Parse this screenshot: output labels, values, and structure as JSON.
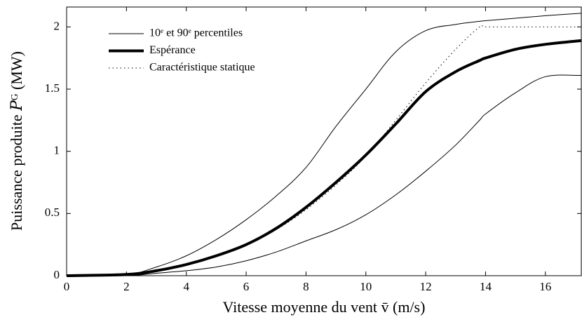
{
  "chart_data": {
    "type": "line",
    "x_label": "Vitesse moyenne du vent v̄ (m/s)",
    "y_label": "Puissance produite 𝑃ᴳ (MW)",
    "x": [
      0,
      2,
      3,
      4,
      5,
      6,
      7,
      8,
      9,
      10,
      11,
      12,
      13,
      13.8,
      14,
      15,
      16,
      17.2
    ],
    "series": [
      {
        "name": "10ᵉ et 90ᵉ percentiles",
        "color": "#000000",
        "line_width": 1,
        "line_style": "solid",
        "values": [
          0,
          0,
          0.02,
          0.04,
          0.07,
          0.12,
          0.19,
          0.28,
          0.37,
          0.49,
          0.65,
          0.84,
          1.05,
          1.25,
          1.3,
          1.47,
          1.6,
          1.61
        ]
      },
      {
        "color": "#000000",
        "line_width": 1,
        "line_style": "solid",
        "values": [
          0,
          0.01,
          0.07,
          0.16,
          0.29,
          0.45,
          0.64,
          0.87,
          1.2,
          1.5,
          1.8,
          1.97,
          2.02,
          2.045,
          2.05,
          2.07,
          2.09,
          2.11
        ]
      },
      {
        "name": "Espérance",
        "color": "#000000",
        "line_width": 4,
        "line_style": "solid",
        "values": [
          0,
          0.01,
          0.04,
          0.09,
          0.16,
          0.25,
          0.38,
          0.55,
          0.75,
          0.97,
          1.22,
          1.48,
          1.64,
          1.73,
          1.75,
          1.82,
          1.86,
          1.89
        ]
      },
      {
        "name": "Caractéristique statique",
        "color": "#000000",
        "line_width": 1,
        "line_style": "dotted",
        "values": [
          0,
          0.01,
          0.04,
          0.09,
          0.16,
          0.25,
          0.37,
          0.53,
          0.73,
          0.96,
          1.25,
          1.55,
          1.82,
          2.0,
          2.0,
          2.0,
          2.0,
          2.0
        ]
      }
    ],
    "xlim": [
      0,
      17.2
    ],
    "ylim": [
      0,
      2.16
    ],
    "xticks": [
      0,
      2,
      4,
      6,
      8,
      10,
      12,
      14,
      16
    ],
    "yticks": [
      0,
      0.5,
      1,
      1.5,
      2
    ],
    "grid": false,
    "legend": "upper left"
  }
}
